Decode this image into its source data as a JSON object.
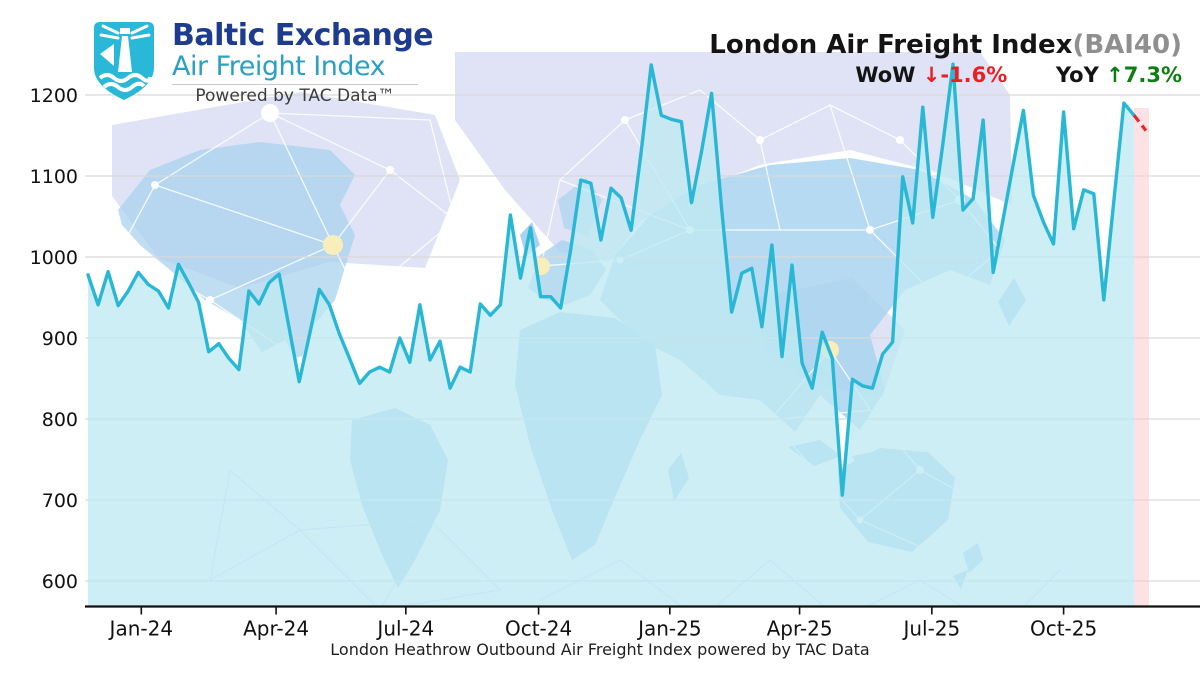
{
  "logo": {
    "line1": "Baltic Exchange",
    "line2": "Air Freight Index",
    "tagline": "Powered by TAC Data™"
  },
  "header": {
    "title": "London Air Freight Index",
    "title_suffix": "(BAI40)",
    "wow_label": "WoW",
    "wow_arrow": "↓",
    "wow_value": "-1.6%",
    "yoy_label": "YoY",
    "yoy_arrow": "↑",
    "yoy_value": "7.3%"
  },
  "caption": "London Heathrow Outbound Air Freight Index powered by TAC Data",
  "chart_data": {
    "type": "area",
    "title": "London Air Freight Index (BAI40)",
    "frequency": "weekly",
    "x_tick_labels": [
      "Jan-24",
      "Apr-24",
      "Jul-24",
      "Oct-24",
      "Jan-25",
      "Apr-25",
      "Jul-25",
      "Oct-25"
    ],
    "y_ticks": [
      600,
      700,
      800,
      900,
      1000,
      1100,
      1200
    ],
    "ylim": [
      568,
      1262
    ],
    "grid": true,
    "values": [
      978,
      941,
      982,
      940,
      958,
      981,
      966,
      958,
      937,
      991,
      968,
      944,
      883,
      893,
      875,
      861,
      958,
      942,
      968,
      979,
      912,
      846,
      903,
      960,
      941,
      905,
      875,
      844,
      858,
      864,
      858,
      900,
      870,
      941,
      873,
      896,
      838,
      864,
      858,
      942,
      928,
      941,
      1052,
      974,
      1036,
      951,
      951,
      937,
      1010,
      1095,
      1091,
      1021,
      1085,
      1073,
      1033,
      1130,
      1237,
      1175,
      1170,
      1167,
      1067,
      1130,
      1202,
      1060,
      932,
      980,
      986,
      914,
      1015,
      877,
      990,
      869,
      838,
      907,
      875,
      706,
      849,
      841,
      838,
      880,
      895,
      1099,
      1042,
      1185,
      1049,
      1140,
      1238,
      1058,
      1072,
      1169,
      981,
      1048,
      1115,
      1181,
      1076,
      1043,
      1016,
      1179,
      1035,
      1083,
      1078,
      947,
      1070,
      1190,
      1175
    ],
    "provisional_value": 1156,
    "latest_change_wow_pct": -1.6,
    "change_yoy_pct": 7.3,
    "line_color": "#29b7d6",
    "fill_color": "rgba(191,233,242,0.78)",
    "provisional_color": "#e8262c",
    "provisional_band_color": "rgba(250,200,207,0.55)",
    "grid_color": "#d9d9d9",
    "axis_color": "#111111"
  }
}
